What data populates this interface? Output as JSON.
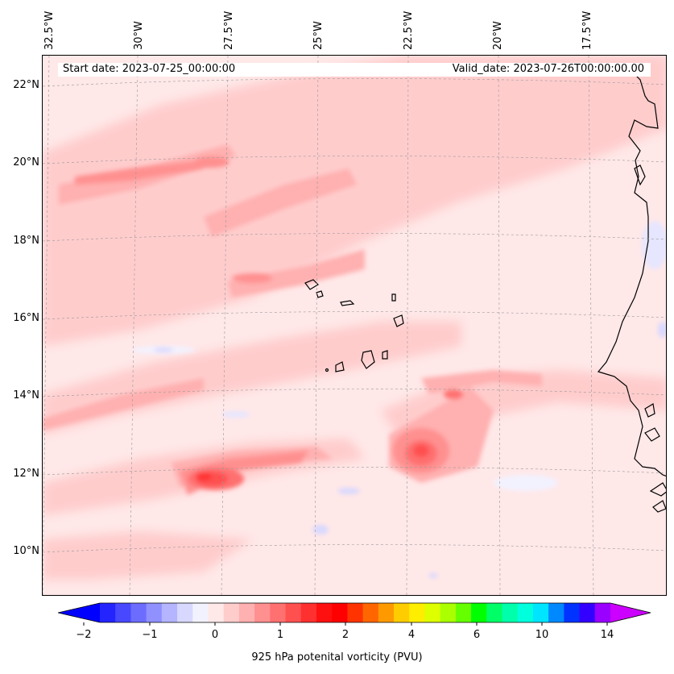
{
  "map": {
    "start_date": "Start date: 2023-07-25_00:00:00",
    "valid_date": "Valid_date: 2023-07-26T00:00:00.00",
    "lon_ticks": [
      "32.5°W",
      "30°W",
      "27.5°W",
      "25°W",
      "22.5°W",
      "20°W",
      "17.5°W"
    ],
    "lat_ticks": [
      "22°N",
      "20°N",
      "18°N",
      "16°N",
      "14°N",
      "12°N",
      "10°N"
    ],
    "extent": {
      "lon_min": -33.0,
      "lon_max": -15.3,
      "lat_min": 8.9,
      "lat_max": 22.8
    }
  },
  "colorbar": {
    "label": "925 hPa potenital vorticity (PVU)",
    "ticks": [
      "−2",
      "−1",
      "0",
      "1",
      "2",
      "4",
      "6",
      "10",
      "14"
    ],
    "colors": [
      "#0000ff",
      "#2424ff",
      "#4848ff",
      "#6c6cff",
      "#9090ff",
      "#b4b4ff",
      "#d8d8ff",
      "#f2f2ff",
      "#ffe8e8",
      "#ffcccc",
      "#ffb0b0",
      "#ff9090",
      "#ff7070",
      "#ff5050",
      "#ff3030",
      "#ff1010",
      "#ff0000",
      "#ff3300",
      "#ff6600",
      "#ff9900",
      "#ffcc00",
      "#ffee00",
      "#ddff00",
      "#aaff00",
      "#66ff00",
      "#00ff00",
      "#00ff66",
      "#00ffaa",
      "#00ffdd",
      "#00e5ff",
      "#0088ff",
      "#0033ff",
      "#3300ff",
      "#9900ff",
      "#cc00ff"
    ]
  }
}
